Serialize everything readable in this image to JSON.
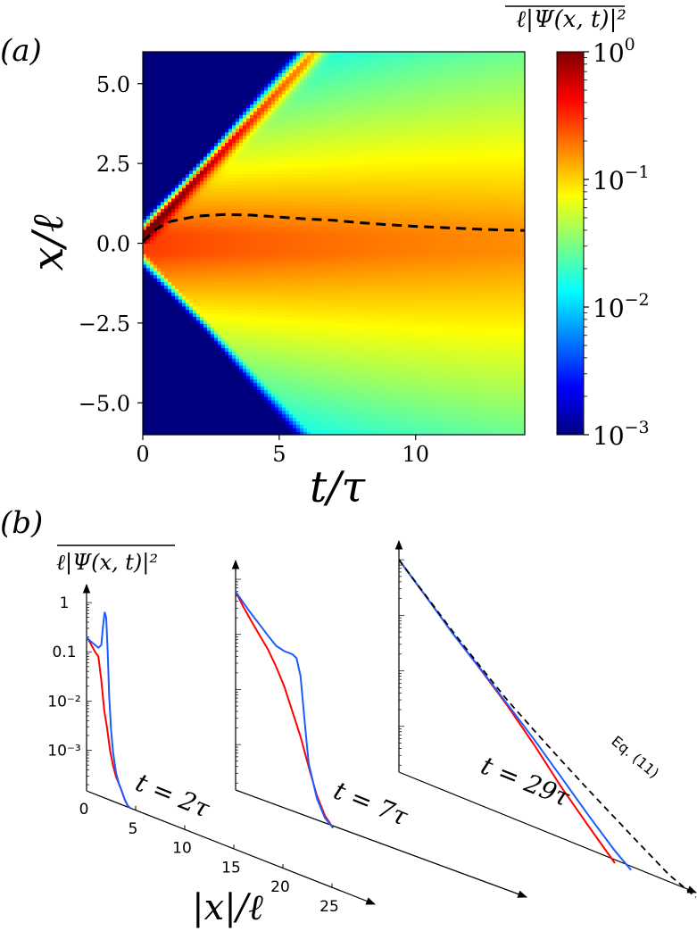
{
  "panel_a_label": "(a)",
  "panel_b_label": "(b)",
  "colorbar_title": "ℓ|Ψ(x, t)|²",
  "colormap": [
    "#00007f",
    "#0000ff",
    "#007fff",
    "#00ffff",
    "#7fff7f",
    "#ffff00",
    "#ff7f00",
    "#ff0000",
    "#7f0000"
  ],
  "chart_data": [
    {
      "type": "heatmap",
      "panel": "a",
      "xlabel": "t/τ",
      "ylabel": "x/ℓ",
      "xlim": [
        0,
        14
      ],
      "ylim": [
        -6,
        6
      ],
      "xticks": [
        0,
        5,
        10
      ],
      "yticks": [
        -5.0,
        -2.5,
        0.0,
        2.5,
        5.0
      ],
      "ytick_labels": [
        "−5.0",
        "−2.5",
        "0.0",
        "2.5",
        "5.0"
      ],
      "colorbar": {
        "scale": "log",
        "range": [
          0.001,
          1
        ],
        "ticks": [
          0.001,
          0.01,
          0.1,
          1
        ],
        "tick_labels": [
          {
            "base": "10",
            "exp": "−3"
          },
          {
            "base": "10",
            "exp": "−2"
          },
          {
            "base": "10",
            "exp": "−1"
          },
          {
            "base": "10",
            "exp": "0"
          }
        ]
      },
      "front_speed": 0.92,
      "dashed_line": {
        "style": "dashed",
        "color": "#000000",
        "t": [
          0,
          0.5,
          1,
          2,
          3,
          4,
          5,
          6,
          7,
          8,
          9,
          10,
          11,
          12,
          13,
          14
        ],
        "x": [
          0.05,
          0.45,
          0.68,
          0.85,
          0.9,
          0.88,
          0.82,
          0.76,
          0.72,
          0.64,
          0.58,
          0.53,
          0.49,
          0.45,
          0.42,
          0.4
        ]
      }
    },
    {
      "type": "line",
      "panel": "b",
      "yscale": "log",
      "ylabel": "ℓ|Ψ(x, t)|²",
      "xlabel": "|x|/ℓ",
      "ytick_labels": [
        "1",
        "0.1",
        "10⁻²",
        "10⁻³"
      ],
      "yticks": [
        1,
        0.1,
        0.01,
        0.001
      ],
      "xticks": [
        0,
        5,
        10,
        15,
        20,
        25
      ],
      "xtick_labels": [
        "0",
        "5",
        "10",
        "15",
        "20",
        "25"
      ],
      "ylim": [
        0.00015,
        1.4
      ],
      "subplots": [
        {
          "label": "t = 2τ",
          "series": [
            {
              "color": "#ff0000",
              "x": [
                0,
                0.3,
                0.6,
                0.9,
                1.2,
                1.5,
                1.8,
                2.1,
                2.4,
                2.7,
                3.0,
                3.3,
                3.6,
                3.9,
                4.2,
                4.5
              ],
              "y": [
                0.2,
                0.17,
                0.14,
                0.115,
                0.1,
                0.035,
                0.009,
                0.004,
                0.0015,
                0.0008,
                0.0005,
                0.00038,
                0.00028,
                0.0002,
                0.00016,
                0.00015
              ]
            },
            {
              "color": "#1a5cff",
              "x": [
                0,
                0.3,
                0.6,
                0.9,
                1.2,
                1.5,
                1.7,
                1.85,
                2.0,
                2.15,
                2.3,
                2.5,
                2.7,
                3.0,
                3.3,
                3.6,
                3.9,
                4.2,
                4.5
              ],
              "y": [
                0.2,
                0.18,
                0.17,
                0.16,
                0.15,
                0.18,
                0.5,
                0.9,
                0.7,
                0.15,
                0.02,
                0.004,
                0.0015,
                0.0006,
                0.00038,
                0.00028,
                0.0002,
                0.00016,
                0.00015
              ]
            }
          ]
        },
        {
          "label": "t = 7τ",
          "series": [
            {
              "color": "#ff0000",
              "x": [
                0,
                1,
                2,
                3,
                4,
                5,
                6,
                7,
                8,
                9,
                10,
                11,
                12
              ],
              "y": [
                0.6,
                0.35,
                0.22,
                0.14,
                0.09,
                0.05,
                0.025,
                0.01,
                0.004,
                0.0013,
                0.00045,
                0.00022,
                0.00015
              ]
            },
            {
              "color": "#1a5cff",
              "x": [
                0,
                1,
                2,
                3,
                4,
                5,
                6,
                7,
                7.5,
                8,
                8.5,
                9,
                10,
                11,
                12
              ],
              "y": [
                0.6,
                0.42,
                0.3,
                0.22,
                0.16,
                0.12,
                0.11,
                0.11,
                0.1,
                0.05,
                0.008,
                0.0015,
                0.0004,
                0.0002,
                0.00015
              ]
            }
          ]
        },
        {
          "label": "t = 29τ",
          "annotation": "Eq. (11)",
          "series": [
            {
              "color": "#ff0000",
              "x": [
                0,
                5,
                10,
                15,
                20,
                25,
                30,
                35,
                40
              ],
              "y": [
                1.0,
                0.35,
                0.12,
                0.045,
                0.016,
                0.005,
                0.0014,
                0.00045,
                0.00015
              ]
            },
            {
              "color": "#1a5cff",
              "x": [
                0,
                5,
                10,
                15,
                20,
                25,
                30,
                35,
                40,
                43
              ],
              "y": [
                1.0,
                0.35,
                0.12,
                0.046,
                0.017,
                0.0062,
                0.0021,
                0.0007,
                0.00025,
                0.00015
              ]
            },
            {
              "color": "#000000",
              "style": "dashed",
              "x": [
                0,
                5,
                10,
                15,
                20,
                25,
                30,
                35,
                40,
                45,
                50,
                55
              ],
              "y": [
                1.0,
                0.36,
                0.13,
                0.05,
                0.02,
                0.009,
                0.0042,
                0.002,
                0.00098,
                0.00048,
                0.00024,
                0.00015
              ]
            }
          ]
        }
      ]
    }
  ]
}
